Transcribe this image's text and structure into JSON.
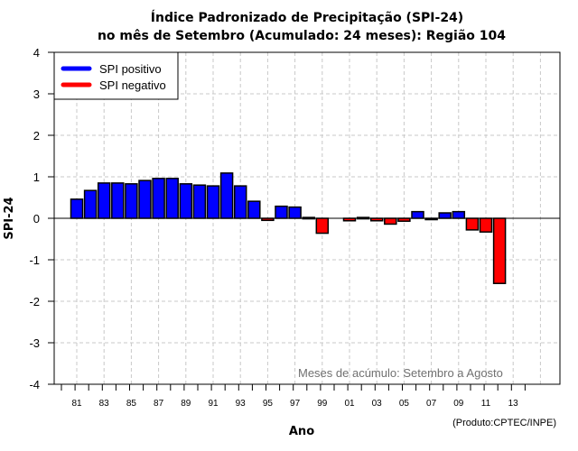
{
  "chart_data": {
    "type": "bar",
    "title": "Índice Padronizado de Precipitação (SPI-24)",
    "subtitle": "no mês de Setembro (Acumulado: 24 meses): Região 104",
    "xlabel": "Ano",
    "ylabel": "SPI-24",
    "ylim": [
      -4,
      4
    ],
    "yticks": [
      "-4",
      "-3",
      "-2",
      "-1",
      "0",
      "1",
      "2",
      "3",
      "4"
    ],
    "xtick_labels": [
      "81",
      "83",
      "85",
      "87",
      "89",
      "91",
      "93",
      "95",
      "97",
      "99",
      "01",
      "03",
      "05",
      "07",
      "09",
      "11",
      "13"
    ],
    "grid": true,
    "legend_position": "top-left",
    "legend": [
      {
        "label": "SPI positivo",
        "color": "#0000ff"
      },
      {
        "label": "SPI negativo",
        "color": "#ff0000"
      }
    ],
    "annotation": "Meses de acúmulo: Setembro a Agosto",
    "credit": "(Produto:CPTEC/INPE)",
    "categories": [
      "1981",
      "1982",
      "1983",
      "1984",
      "1985",
      "1986",
      "1987",
      "1988",
      "1989",
      "1990",
      "1991",
      "1992",
      "1993",
      "1994",
      "1995",
      "1996",
      "1997",
      "1998",
      "1999",
      "2000",
      "2001",
      "2002",
      "2003",
      "2004",
      "2005",
      "2006",
      "2007",
      "2008",
      "2009",
      "2010",
      "2011",
      "2012"
    ],
    "values": [
      0.46,
      0.67,
      0.85,
      0.85,
      0.83,
      0.91,
      0.96,
      0.96,
      0.83,
      0.8,
      0.78,
      1.09,
      0.78,
      0.41,
      -0.05,
      0.29,
      0.27,
      0.02,
      -0.36,
      0.0,
      -0.06,
      0.02,
      -0.06,
      -0.14,
      -0.07,
      0.16,
      -0.03,
      0.13,
      0.16,
      -0.28,
      -0.33,
      -1.57
    ],
    "colors": {
      "positive": "#0000ff",
      "negative": "#ff0000",
      "grid": "#c8c8c8"
    }
  }
}
